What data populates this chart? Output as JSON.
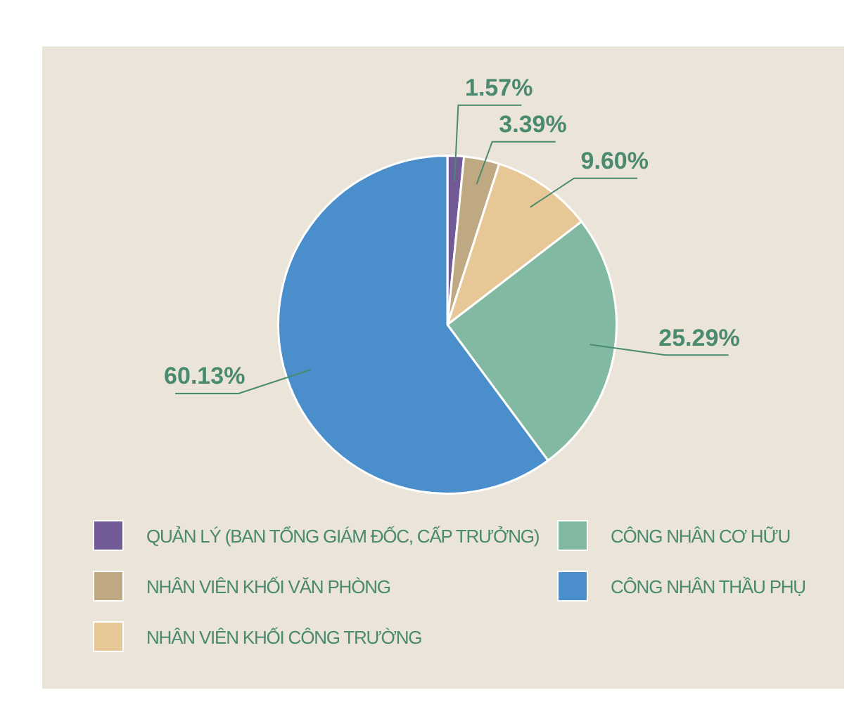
{
  "chart_data": {
    "type": "pie",
    "categories": [
      "QUẢN LÝ (BAN TỔNG GIÁM ĐỐC, CẤP TRƯỞNG)",
      "NHÂN VIÊN KHỐI VĂN PHÒNG",
      "NHÂN VIÊN KHỐI CÔNG TRƯỜNG",
      "CÔNG NHÂN CƠ HỮU",
      "CÔNG NHÂN THẦU PHỤ"
    ],
    "values": [
      1.57,
      3.39,
      9.6,
      25.29,
      60.13
    ],
    "colors": [
      "#725a96",
      "#bfa983",
      "#e7c795",
      "#82b9a3",
      "#4a8ecb"
    ],
    "value_labels": [
      "1.57%",
      "3.39%",
      "9.60%",
      "25.29%",
      "60.13%"
    ],
    "legend": "bottom"
  }
}
